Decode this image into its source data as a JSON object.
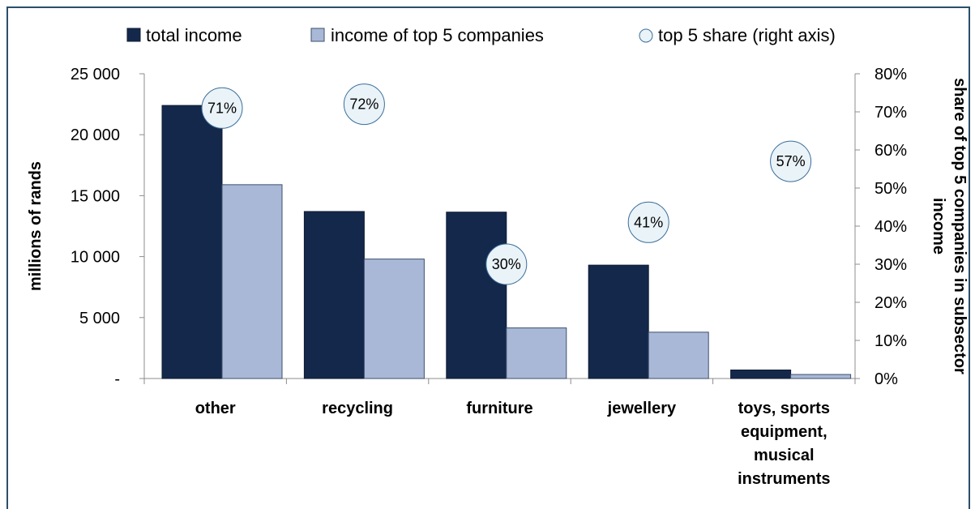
{
  "chart_data": {
    "type": "bar",
    "categories": [
      "other",
      "recycling",
      "furniture",
      "jewellery",
      "toys, sports equipment, musical instruments"
    ],
    "category_lines": [
      [
        "other"
      ],
      [
        "recycling"
      ],
      [
        "furniture"
      ],
      [
        "jewellery"
      ],
      [
        "toys, sports",
        "equipment,",
        "musical",
        "instruments"
      ]
    ],
    "series": [
      {
        "name": "total income",
        "values": [
          22400,
          13700,
          13650,
          9300,
          700
        ],
        "axis": "left",
        "color": "#14284b"
      },
      {
        "name": "income of top 5 companies",
        "values": [
          15900,
          9800,
          4150,
          3800,
          330
        ],
        "axis": "left",
        "color": "#a9b8d6"
      },
      {
        "name": "top 5 share (right axis)",
        "values": [
          0.71,
          0.72,
          0.3,
          0.41,
          0.57
        ],
        "axis": "right",
        "type": "scatter",
        "color": "#eaf3f8"
      }
    ],
    "point_labels": [
      "71%",
      "72%",
      "30%",
      "41%",
      "57%"
    ],
    "ylabel": "millions of rands",
    "y2label_lines": [
      "share of top 5 companies in subsector",
      "income"
    ],
    "ylim": [
      0,
      25000
    ],
    "y2lim": [
      0,
      0.8
    ],
    "yticks": [
      0,
      5000,
      10000,
      15000,
      20000,
      25000
    ],
    "ytick_labels": [
      "-",
      "5 000",
      "10 000",
      "15 000",
      "20 000",
      "25 000"
    ],
    "y2ticks": [
      0,
      0.1,
      0.2,
      0.3,
      0.4,
      0.5,
      0.6,
      0.7,
      0.8
    ],
    "y2tick_labels": [
      "0%",
      "10%",
      "20%",
      "30%",
      "40%",
      "50%",
      "60%",
      "70%",
      "80%"
    ],
    "grid": false,
    "legend": "top"
  }
}
